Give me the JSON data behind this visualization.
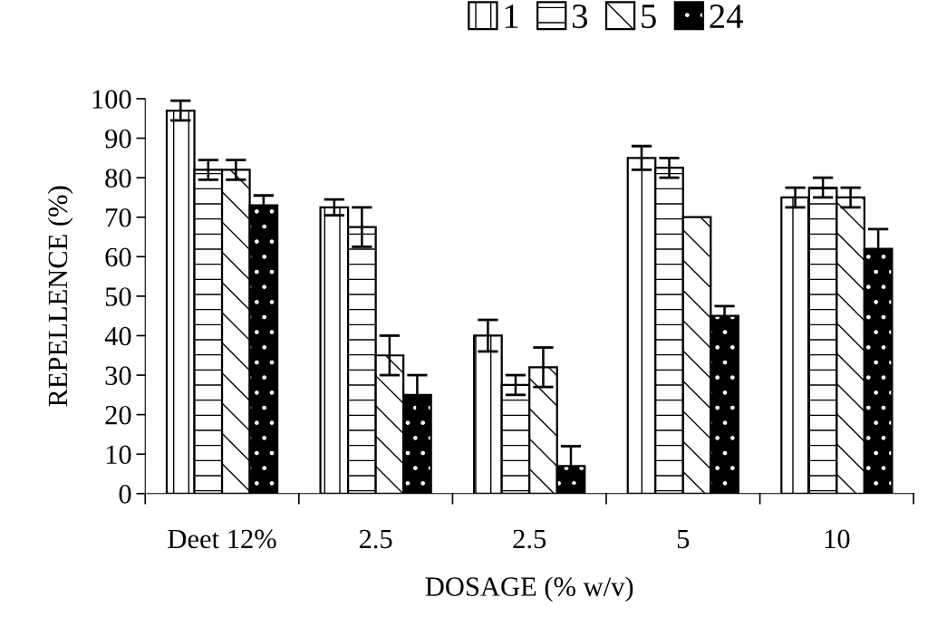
{
  "chart_data": {
    "type": "bar",
    "xlabel": "DOSAGE (% w/v)",
    "ylabel": "REPELLENCE (%)",
    "categories": [
      "Deet 12%",
      "2.5",
      "2.5",
      "5",
      "10"
    ],
    "series": [
      {
        "name": "1",
        "color": "#000000",
        "values": [
          97,
          72.5,
          40,
          85,
          75
        ],
        "errors": [
          2.5,
          2,
          4,
          3,
          2.5
        ]
      },
      {
        "name": "3",
        "color": "#000000",
        "values": [
          82,
          67.5,
          27.5,
          82.5,
          77.5
        ],
        "errors": [
          2.5,
          5,
          2.5,
          2.5,
          2.5
        ]
      },
      {
        "name": "5",
        "color": "#000000",
        "values": [
          82,
          35,
          32,
          70,
          75
        ],
        "errors": [
          2.5,
          5,
          5,
          null,
          2.5
        ]
      },
      {
        "name": "24",
        "color": "#000000",
        "values": [
          73,
          25,
          7,
          45,
          62
        ],
        "errors": [
          2.5,
          5,
          5,
          2.5,
          5
        ]
      }
    ],
    "ylim": [
      0,
      100
    ],
    "yticks": [
      0,
      10,
      20,
      30,
      40,
      50,
      60,
      70,
      80,
      90,
      100
    ],
    "grid": false,
    "legend": "top"
  }
}
